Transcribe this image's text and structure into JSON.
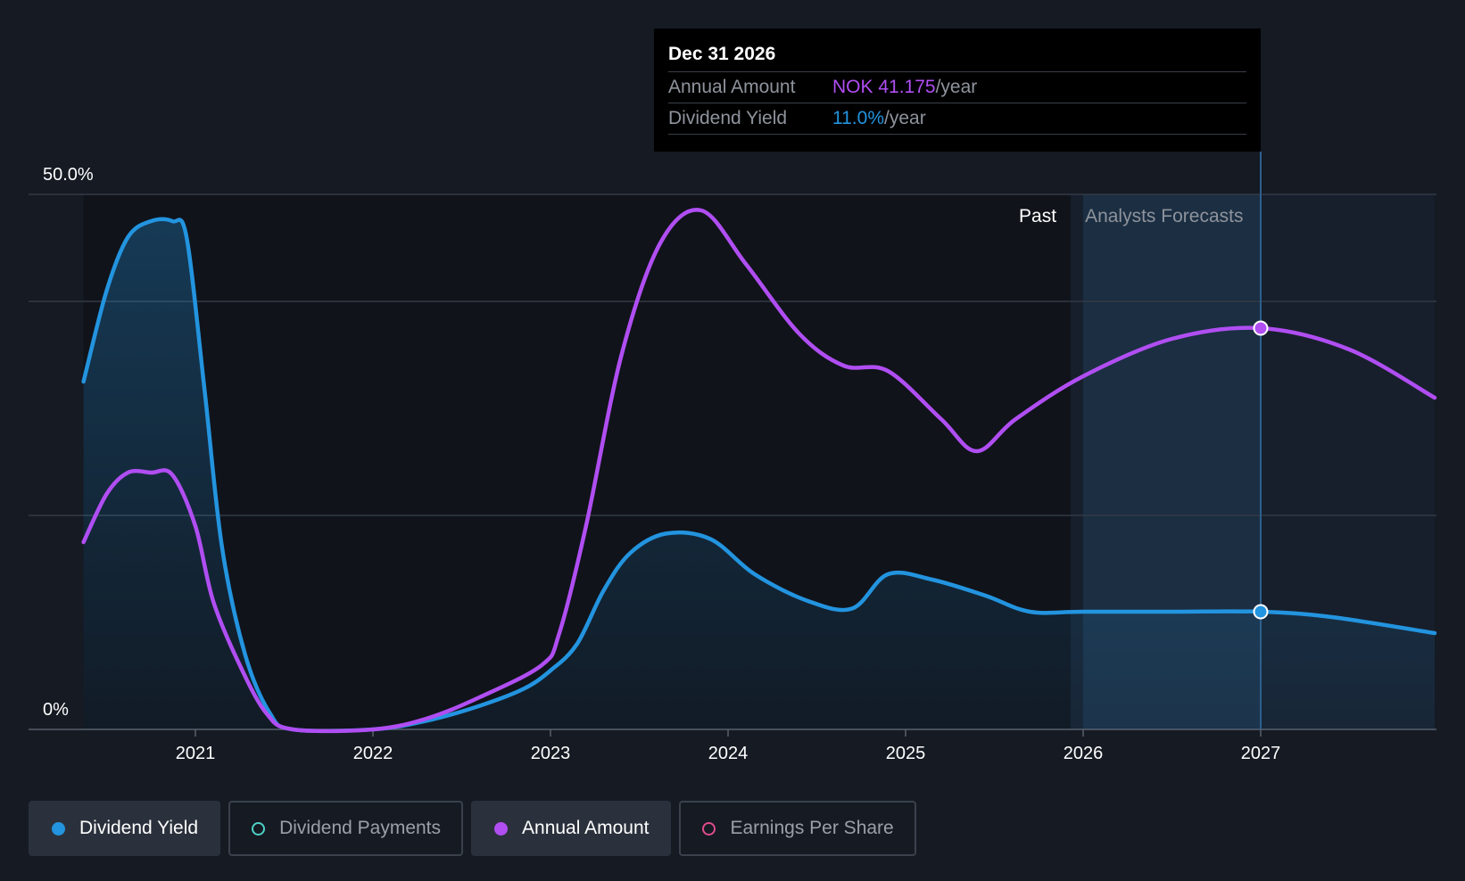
{
  "tooltip": {
    "date": "Dec 31 2026",
    "annual_label": "Annual Amount",
    "annual_value": "NOK 41.175",
    "annual_unit": "/year",
    "yield_label": "Dividend Yield",
    "yield_value": "11.0%",
    "yield_unit": "/year"
  },
  "legend": {
    "items": [
      {
        "label": "Dividend Yield",
        "color": "#2394df",
        "active": true
      },
      {
        "label": "Dividend Payments",
        "color": "#4fd1c5",
        "active": false
      },
      {
        "label": "Annual Amount",
        "color": "#b04ef2",
        "active": true
      },
      {
        "label": "Earnings Per Share",
        "color": "#e04b8c",
        "active": false
      }
    ]
  },
  "chart_data": {
    "type": "area",
    "y_axis_labels": {
      "top": "50.0%",
      "bottom": "0%"
    },
    "ylim": [
      0,
      50
    ],
    "xlim": [
      2020.37,
      2027.98
    ],
    "x_ticks": [
      2021,
      2022,
      2023,
      2024,
      2025,
      2026,
      2027
    ],
    "x_tick_labels": [
      "2021",
      "2022",
      "2023",
      "2024",
      "2025",
      "2026",
      "2027"
    ],
    "regions": {
      "past_label": "Past",
      "forecast_label": "Analysts Forecasts",
      "forecast_start": 2025.93
    },
    "highlight_x": 2027.0,
    "series": [
      {
        "name": "Dividend Yield",
        "color": "#2394df",
        "filled": true,
        "points": [
          [
            2020.37,
            32.5
          ],
          [
            2020.5,
            41.0
          ],
          [
            2020.62,
            46.0
          ],
          [
            2020.75,
            47.5
          ],
          [
            2020.87,
            47.5
          ],
          [
            2020.95,
            46.0
          ],
          [
            2021.05,
            32.0
          ],
          [
            2021.15,
            17.0
          ],
          [
            2021.28,
            7.0
          ],
          [
            2021.42,
            1.5
          ],
          [
            2021.55,
            0.0
          ],
          [
            2022.0,
            0.0
          ],
          [
            2022.3,
            0.8
          ],
          [
            2022.6,
            2.2
          ],
          [
            2022.85,
            3.8
          ],
          [
            2023.0,
            5.5
          ],
          [
            2023.15,
            8.0
          ],
          [
            2023.3,
            13.0
          ],
          [
            2023.45,
            16.5
          ],
          [
            2023.65,
            18.3
          ],
          [
            2023.9,
            17.8
          ],
          [
            2024.15,
            14.5
          ],
          [
            2024.45,
            12.0
          ],
          [
            2024.7,
            11.3
          ],
          [
            2024.9,
            14.5
          ],
          [
            2025.15,
            14.0
          ],
          [
            2025.45,
            12.5
          ],
          [
            2025.7,
            11.0
          ],
          [
            2026.0,
            11.0
          ],
          [
            2026.5,
            11.0
          ],
          [
            2027.0,
            11.0
          ],
          [
            2027.4,
            10.5
          ],
          [
            2027.98,
            9.0
          ]
        ]
      },
      {
        "name": "Annual Amount",
        "color": "#b04ef2",
        "filled": false,
        "points": [
          [
            2020.37,
            17.5
          ],
          [
            2020.5,
            22.0
          ],
          [
            2020.62,
            24.0
          ],
          [
            2020.75,
            24.0
          ],
          [
            2020.87,
            23.8
          ],
          [
            2021.0,
            19.0
          ],
          [
            2021.1,
            12.0
          ],
          [
            2021.25,
            6.0
          ],
          [
            2021.4,
            1.5
          ],
          [
            2021.55,
            0.0
          ],
          [
            2022.0,
            0.0
          ],
          [
            2022.3,
            1.0
          ],
          [
            2022.6,
            3.0
          ],
          [
            2022.95,
            6.0
          ],
          [
            2023.05,
            9.0
          ],
          [
            2023.2,
            19.0
          ],
          [
            2023.4,
            35.0
          ],
          [
            2023.62,
            45.5
          ],
          [
            2023.85,
            48.5
          ],
          [
            2024.1,
            43.5
          ],
          [
            2024.4,
            37.0
          ],
          [
            2024.65,
            34.0
          ],
          [
            2024.9,
            33.5
          ],
          [
            2025.2,
            29.0
          ],
          [
            2025.4,
            26.0
          ],
          [
            2025.62,
            29.0
          ],
          [
            2026.0,
            33.0
          ],
          [
            2026.5,
            36.5
          ],
          [
            2027.0,
            37.5
          ],
          [
            2027.5,
            35.5
          ],
          [
            2027.98,
            31.0
          ]
        ]
      }
    ]
  }
}
